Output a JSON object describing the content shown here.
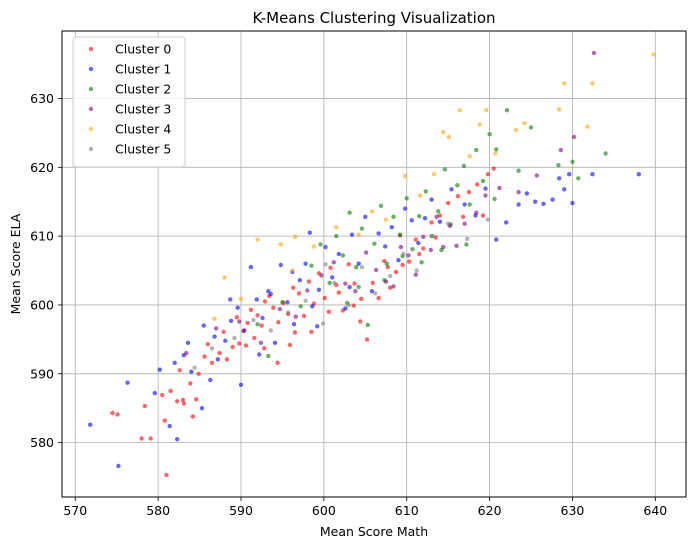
{
  "chart_data": {
    "type": "scatter",
    "title": "K-Means Clustering Visualization",
    "xlabel": "Mean Score Math",
    "ylabel": "Mean Score ELA",
    "xlim": [
      568.4,
      643.7
    ],
    "ylim": [
      572.1,
      639.8
    ],
    "xticks": [
      570,
      580,
      590,
      600,
      610,
      620,
      630,
      640
    ],
    "yticks": [
      580,
      590,
      600,
      610,
      620,
      630
    ],
    "grid": true,
    "legend_position": "top-left",
    "point_opacity": 0.6,
    "series": [
      {
        "name": "Cluster 0",
        "color": "#ff0000",
        "points": [
          [
            574.5,
            584.3
          ],
          [
            575.1,
            584.1
          ],
          [
            578.0,
            580.6
          ],
          [
            579.1,
            580.6
          ],
          [
            581.0,
            575.3
          ],
          [
            580.5,
            586.9
          ],
          [
            581.5,
            587.5
          ],
          [
            582.3,
            586.0
          ],
          [
            583.1,
            585.7
          ],
          [
            583.9,
            588.6
          ],
          [
            584.6,
            586.3
          ],
          [
            584.9,
            590.0
          ],
          [
            585.6,
            592.5
          ],
          [
            586.5,
            591.6
          ],
          [
            587.4,
            593.0
          ],
          [
            588.3,
            592.1
          ],
          [
            589.0,
            593.9
          ],
          [
            589.8,
            594.4
          ],
          [
            590.3,
            596.2
          ],
          [
            590.8,
            597.4
          ],
          [
            591.2,
            599.3
          ],
          [
            591.6,
            595.2
          ],
          [
            592.0,
            598.5
          ],
          [
            592.5,
            597.0
          ],
          [
            592.9,
            600.5
          ],
          [
            593.4,
            601.3
          ],
          [
            593.9,
            599.6
          ],
          [
            594.5,
            597.5
          ],
          [
            595.1,
            600.3
          ],
          [
            595.7,
            598.7
          ],
          [
            596.3,
            602.5
          ],
          [
            597.0,
            601.7
          ],
          [
            597.6,
            598.4
          ],
          [
            598.2,
            603.4
          ],
          [
            598.8,
            600.2
          ],
          [
            599.4,
            604.6
          ],
          [
            600.1,
            601.0
          ],
          [
            600.8,
            605.4
          ],
          [
            601.5,
            602.9
          ],
          [
            602.3,
            599.2
          ],
          [
            603.0,
            605.9
          ],
          [
            603.7,
            603.1
          ],
          [
            604.4,
            597.6
          ],
          [
            605.2,
            595.0
          ],
          [
            605.9,
            603.2
          ],
          [
            606.6,
            601.0
          ],
          [
            607.3,
            606.4
          ],
          [
            608.0,
            602.5
          ],
          [
            608.7,
            604.8
          ],
          [
            609.5,
            605.8
          ],
          [
            610.3,
            606.3
          ],
          [
            611.1,
            609.5
          ],
          [
            612.0,
            608.2
          ],
          [
            613.0,
            612.0
          ],
          [
            614.0,
            613.0
          ],
          [
            615.0,
            614.8
          ],
          [
            616.2,
            615.8
          ],
          [
            617.5,
            616.4
          ],
          [
            618.5,
            617.5
          ],
          [
            619.8,
            619.0
          ],
          [
            620.5,
            619.8
          ],
          [
            590.6,
            594.1
          ],
          [
            589.5,
            598.2
          ],
          [
            587.9,
            596.1
          ],
          [
            586.0,
            594.3
          ],
          [
            584.2,
            583.8
          ],
          [
            583.0,
            586.2
          ],
          [
            582.6,
            590.5
          ],
          [
            580.8,
            583.2
          ],
          [
            578.4,
            585.3
          ],
          [
            596.5,
            596.0
          ],
          [
            598.5,
            596.1
          ],
          [
            594.4,
            591.6
          ],
          [
            592.8,
            593.7
          ],
          [
            595.9,
            594.2
          ],
          [
            600.6,
            599.0
          ],
          [
            601.8,
            601.8
          ],
          [
            603.6,
            599.9
          ],
          [
            604.5,
            600.9
          ],
          [
            607.7,
            605.5
          ],
          [
            609.2,
            610.1
          ],
          [
            611.5,
            607.4
          ],
          [
            613.5,
            609.8
          ],
          [
            616.8,
            612.8
          ],
          [
            619.2,
            613.0
          ]
        ]
      },
      {
        "name": "Cluster 1",
        "color": "#0000ff",
        "points": [
          [
            571.8,
            582.6
          ],
          [
            575.2,
            576.6
          ],
          [
            576.3,
            588.7
          ],
          [
            579.6,
            587.2
          ],
          [
            580.2,
            590.6
          ],
          [
            582.3,
            580.5
          ],
          [
            583.1,
            592.7
          ],
          [
            584.0,
            590.3
          ],
          [
            585.3,
            585.0
          ],
          [
            586.3,
            589.1
          ],
          [
            587.2,
            592.1
          ],
          [
            588.1,
            594.8
          ],
          [
            588.8,
            597.7
          ],
          [
            589.6,
            599.6
          ],
          [
            590.4,
            596.3
          ],
          [
            591.2,
            605.5
          ],
          [
            591.9,
            600.8
          ],
          [
            592.6,
            598.1
          ],
          [
            593.3,
            602.0
          ],
          [
            594.1,
            594.5
          ],
          [
            594.8,
            605.8
          ],
          [
            595.6,
            600.4
          ],
          [
            596.4,
            597.2
          ],
          [
            597.1,
            603.6
          ],
          [
            597.8,
            606.0
          ],
          [
            598.6,
            599.8
          ],
          [
            599.4,
            602.2
          ],
          [
            600.2,
            608.4
          ],
          [
            601.0,
            604.0
          ],
          [
            601.8,
            607.4
          ],
          [
            602.6,
            599.5
          ],
          [
            603.4,
            610.2
          ],
          [
            604.2,
            606.0
          ],
          [
            605.0,
            612.8
          ],
          [
            605.8,
            602.0
          ],
          [
            606.6,
            610.4
          ],
          [
            607.4,
            608.5
          ],
          [
            608.2,
            611.3
          ],
          [
            609.0,
            606.5
          ],
          [
            609.8,
            614.0
          ],
          [
            610.6,
            612.3
          ],
          [
            611.4,
            609.0
          ],
          [
            612.2,
            612.6
          ],
          [
            613.0,
            615.3
          ],
          [
            614.0,
            612.1
          ],
          [
            615.4,
            616.8
          ],
          [
            617.0,
            614.6
          ],
          [
            618.3,
            613.0
          ],
          [
            619.5,
            616.9
          ],
          [
            620.8,
            609.5
          ],
          [
            622.0,
            612.0
          ],
          [
            623.5,
            614.6
          ],
          [
            624.5,
            616.2
          ],
          [
            625.5,
            615.0
          ],
          [
            626.5,
            614.7
          ],
          [
            627.6,
            615.3
          ],
          [
            628.4,
            618.4
          ],
          [
            629.0,
            616.8
          ],
          [
            629.6,
            619.0
          ],
          [
            630.0,
            614.8
          ],
          [
            632.4,
            619.0
          ],
          [
            638.0,
            619.0
          ],
          [
            598.3,
            610.5
          ],
          [
            596.2,
            604.8
          ],
          [
            593.6,
            601.6
          ],
          [
            588.7,
            600.8
          ],
          [
            586.8,
            595.4
          ],
          [
            585.5,
            597.0
          ],
          [
            583.6,
            594.5
          ],
          [
            582.0,
            591.6
          ],
          [
            581.4,
            582.4
          ],
          [
            590.0,
            588.4
          ],
          [
            592.2,
            592.8
          ],
          [
            599.2,
            596.9
          ],
          [
            603.1,
            602.6
          ]
        ]
      },
      {
        "name": "Cluster 2",
        "color": "#008000",
        "points": [
          [
            592.0,
            597.2
          ],
          [
            593.3,
            592.6
          ],
          [
            595.0,
            600.4
          ],
          [
            597.2,
            599.8
          ],
          [
            598.5,
            605.7
          ],
          [
            599.6,
            608.8
          ],
          [
            600.7,
            603.2
          ],
          [
            601.5,
            610.0
          ],
          [
            602.3,
            607.2
          ],
          [
            603.1,
            613.4
          ],
          [
            603.9,
            605.5
          ],
          [
            604.6,
            611.1
          ],
          [
            605.3,
            597.1
          ],
          [
            606.1,
            608.9
          ],
          [
            606.9,
            614.4
          ],
          [
            607.6,
            606.0
          ],
          [
            608.4,
            612.8
          ],
          [
            609.2,
            610.2
          ],
          [
            610.0,
            615.5
          ],
          [
            610.7,
            608.1
          ],
          [
            611.5,
            612.9
          ],
          [
            612.3,
            616.5
          ],
          [
            613.0,
            610.0
          ],
          [
            613.8,
            613.6
          ],
          [
            614.6,
            619.7
          ],
          [
            615.3,
            611.7
          ],
          [
            616.1,
            617.4
          ],
          [
            616.9,
            620.2
          ],
          [
            617.6,
            614.6
          ],
          [
            618.4,
            622.5
          ],
          [
            619.2,
            618.0
          ],
          [
            620.0,
            624.8
          ],
          [
            620.8,
            622.6
          ],
          [
            622.1,
            628.3
          ],
          [
            623.5,
            619.5
          ],
          [
            625.0,
            625.8
          ],
          [
            628.3,
            620.3
          ],
          [
            630.0,
            620.8
          ],
          [
            630.7,
            618.4
          ],
          [
            634.0,
            622.0
          ],
          [
            602.8,
            600.3
          ],
          [
            604.2,
            602.6
          ],
          [
            607.3,
            603.6
          ],
          [
            609.5,
            607.1
          ],
          [
            611.8,
            606.2
          ],
          [
            614.2,
            608.0
          ],
          [
            617.2,
            608.8
          ],
          [
            620.6,
            615.4
          ]
        ]
      },
      {
        "name": "Cluster 3",
        "color": "#800080",
        "points": [
          [
            583.4,
            593.0
          ],
          [
            587.0,
            596.6
          ],
          [
            589.8,
            597.6
          ],
          [
            592.4,
            594.5
          ],
          [
            594.7,
            599.4
          ],
          [
            596.6,
            598.3
          ],
          [
            598.0,
            602.1
          ],
          [
            599.7,
            604.3
          ],
          [
            601.2,
            606.2
          ],
          [
            602.6,
            603.1
          ],
          [
            603.8,
            602.0
          ],
          [
            605.1,
            607.6
          ],
          [
            606.3,
            605.1
          ],
          [
            607.5,
            603.4
          ],
          [
            608.4,
            602.7
          ],
          [
            609.3,
            608.4
          ],
          [
            610.2,
            607.2
          ],
          [
            611.1,
            604.4
          ],
          [
            612.0,
            609.9
          ],
          [
            612.9,
            608.0
          ],
          [
            613.6,
            612.8
          ],
          [
            614.4,
            608.4
          ],
          [
            615.2,
            611.5
          ],
          [
            616.0,
            608.6
          ],
          [
            617.0,
            611.8
          ],
          [
            618.4,
            613.4
          ],
          [
            619.5,
            615.9
          ],
          [
            621.2,
            617.0
          ],
          [
            623.5,
            616.4
          ],
          [
            625.7,
            618.8
          ],
          [
            630.2,
            624.4
          ],
          [
            632.6,
            636.6
          ],
          [
            628.6,
            622.5
          ]
        ]
      },
      {
        "name": "Cluster 4",
        "color": "#ffa500",
        "points": [
          [
            588.0,
            604.0
          ],
          [
            592.0,
            609.5
          ],
          [
            596.5,
            609.9
          ],
          [
            598.8,
            608.5
          ],
          [
            601.5,
            611.3
          ],
          [
            604.2,
            610.2
          ],
          [
            605.8,
            613.6
          ],
          [
            607.5,
            612.4
          ],
          [
            609.8,
            618.7
          ],
          [
            611.6,
            615.9
          ],
          [
            613.3,
            619.0
          ],
          [
            614.4,
            625.1
          ],
          [
            615.1,
            624.4
          ],
          [
            616.4,
            628.3
          ],
          [
            617.6,
            621.6
          ],
          [
            618.8,
            626.2
          ],
          [
            619.6,
            628.3
          ],
          [
            620.7,
            622.0
          ],
          [
            623.2,
            625.4
          ],
          [
            624.2,
            626.4
          ],
          [
            628.4,
            628.4
          ],
          [
            629.0,
            632.2
          ],
          [
            631.8,
            625.9
          ],
          [
            632.4,
            632.2
          ],
          [
            639.8,
            636.4
          ],
          [
            596.2,
            605.0
          ],
          [
            594.8,
            608.8
          ],
          [
            590.0,
            600.9
          ],
          [
            586.8,
            598.0
          ]
        ]
      },
      {
        "name": "Cluster 5",
        "color": "#808080",
        "points": [
          [
            584.4,
            590.9
          ],
          [
            586.5,
            593.7
          ],
          [
            589.2,
            595.2
          ],
          [
            591.5,
            597.8
          ],
          [
            593.6,
            596.3
          ],
          [
            595.7,
            598.9
          ],
          [
            597.8,
            600.6
          ],
          [
            599.9,
            597.3
          ],
          [
            601.3,
            603.2
          ],
          [
            603.0,
            600.0
          ],
          [
            604.6,
            605.5
          ],
          [
            606.2,
            601.7
          ],
          [
            608.0,
            604.2
          ],
          [
            609.6,
            607.4
          ],
          [
            611.2,
            605.0
          ],
          [
            613.1,
            610.0
          ],
          [
            615.0,
            611.8
          ],
          [
            617.3,
            609.6
          ],
          [
            619.8,
            612.4
          ],
          [
            600.2,
            605.9
          ]
        ]
      }
    ]
  }
}
